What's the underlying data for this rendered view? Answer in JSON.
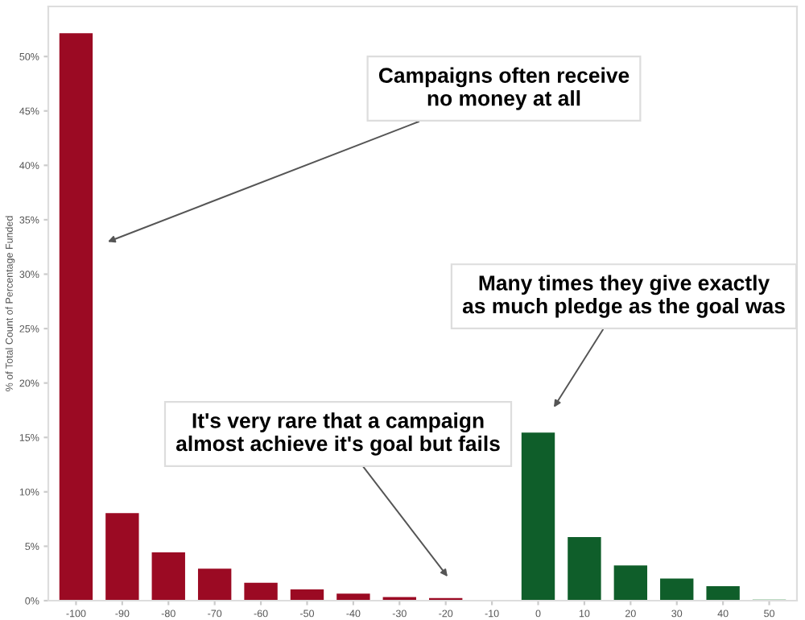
{
  "chart_data": {
    "type": "bar",
    "ylabel": "% of Total Count of Percentage Funded",
    "categories": [
      "-100",
      "-90",
      "-80",
      "-70",
      "-60",
      "-50",
      "-40",
      "-30",
      "-20",
      "-10",
      "0",
      "10",
      "20",
      "30",
      "40",
      "50"
    ],
    "values": [
      52.2,
      8.1,
      4.5,
      3.0,
      1.7,
      1.1,
      0.7,
      0.4,
      0.3,
      0.1,
      15.5,
      5.9,
      3.3,
      2.1,
      1.4,
      0.2
    ],
    "colors": [
      "#9b0a23",
      "#9b0a23",
      "#9b0a23",
      "#9b0a23",
      "#9b0a23",
      "#9b0a23",
      "#9b0a23",
      "#9b0a23",
      "#9b0a23",
      "#e8b4bc",
      "#0f5e2a",
      "#0f5e2a",
      "#0f5e2a",
      "#0f5e2a",
      "#0f5e2a",
      "#a9cfb0"
    ],
    "ylim": [
      0,
      54.6
    ],
    "yticks": [
      {
        "value": 0,
        "label": "0%"
      },
      {
        "value": 5,
        "label": "5%"
      },
      {
        "value": 10,
        "label": "10%"
      },
      {
        "value": 15,
        "label": "15%"
      },
      {
        "value": 20,
        "label": "20%"
      },
      {
        "value": 25,
        "label": "25%"
      },
      {
        "value": 30,
        "label": "30%"
      },
      {
        "value": 35,
        "label": "35%"
      },
      {
        "value": 40,
        "label": "40%"
      },
      {
        "value": 45,
        "label": "45%"
      },
      {
        "value": 50,
        "label": "50%"
      }
    ],
    "grid": false,
    "annotations": [
      "Campaigns often receive\nno money at all",
      "Many times they give exactly\nas much pledge as the goal was",
      "It's very rare that a campaign\nalmost achieve it's goal but fails"
    ]
  }
}
